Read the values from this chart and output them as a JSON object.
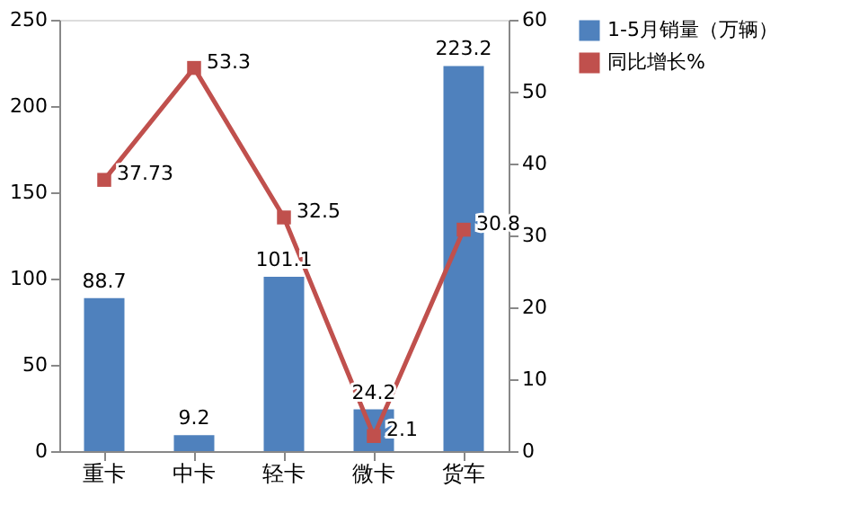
{
  "chart_data": {
    "type": "bar",
    "categories": [
      "重卡",
      "中卡",
      "轻卡",
      "微卡",
      "货车"
    ],
    "series": [
      {
        "name": "1-5月销量（万辆）",
        "type": "bar",
        "color": "#4f81bd",
        "values": [
          88.7,
          9.2,
          101.1,
          24.2,
          223.2
        ]
      },
      {
        "name": "同比增长%",
        "type": "line",
        "axis": "y2",
        "marker": "square",
        "color": "#c0504d",
        "values": [
          37.73,
          53.3,
          32.5,
          2.1,
          30.8
        ]
      }
    ],
    "ylim": [
      0,
      250
    ],
    "yticks": [
      0,
      50,
      100,
      150,
      200,
      250
    ],
    "y2lim": [
      0,
      60
    ],
    "y2ticks": [
      0,
      10,
      20,
      30,
      40,
      50,
      60
    ],
    "data_labels": true,
    "legend": "right",
    "grid": false
  }
}
